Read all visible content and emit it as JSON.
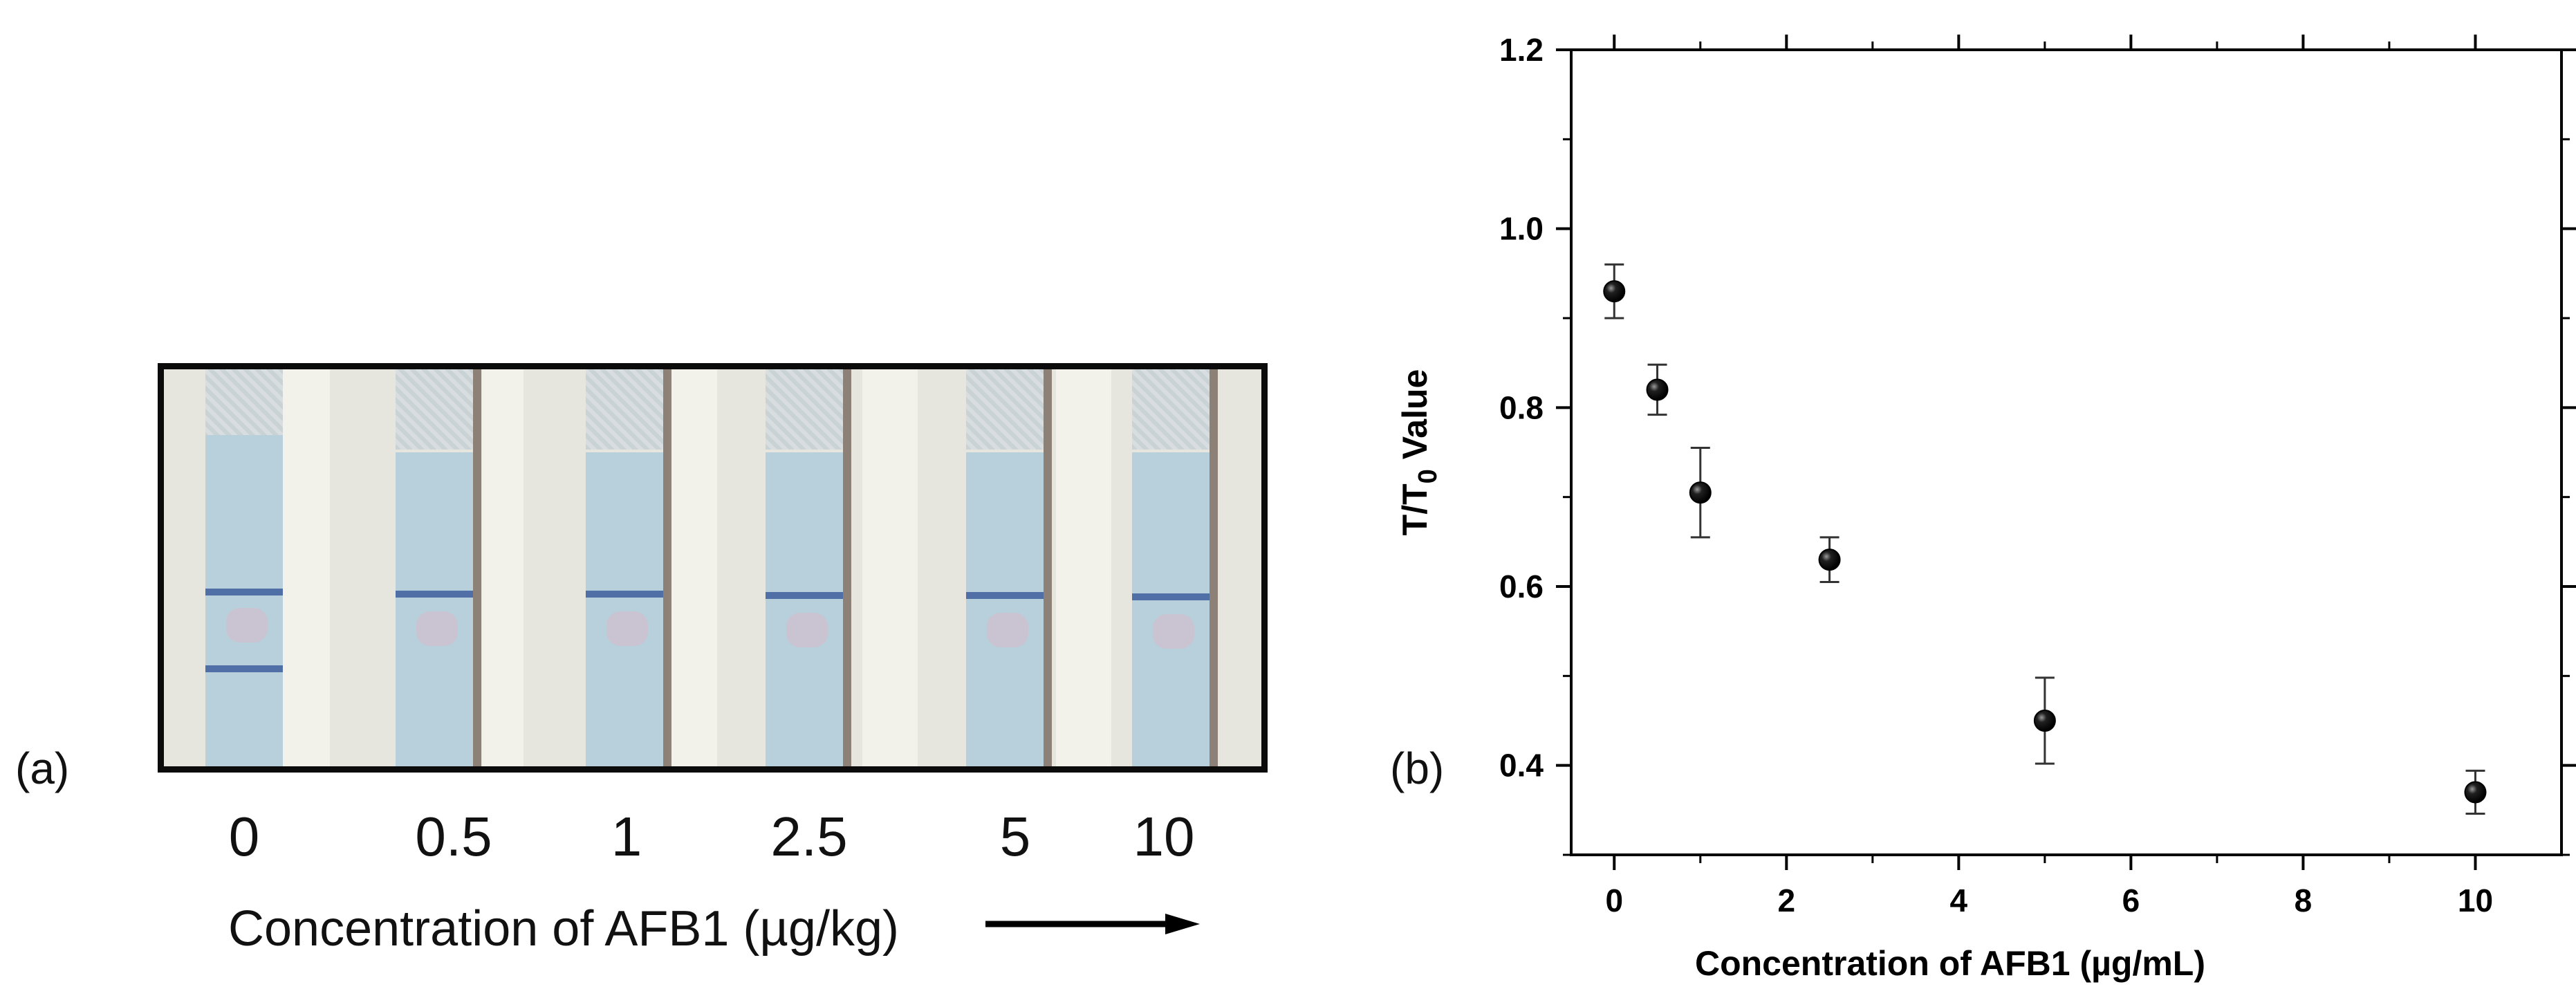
{
  "panel_a": {
    "label": "(a)",
    "concentrations": [
      "0",
      "0.5",
      "1",
      "2.5",
      "5",
      "10"
    ],
    "xlabel": "Concentration of AFB1 (µg/kg)",
    "arrow_icon": "right-arrow-icon"
  },
  "panel_b": {
    "label": "(b)"
  },
  "chart_data": {
    "type": "scatter",
    "title": "",
    "xlabel": "Concentration of AFB1 (µg/mL)",
    "ylabel": "T/T0 Value",
    "ylabel_main": "T/T",
    "ylabel_sub": "0",
    "ylabel_tail": " Value",
    "xlim": [
      -0.5,
      11
    ],
    "ylim": [
      0.3,
      1.2
    ],
    "xticks": [
      0,
      2,
      4,
      6,
      8,
      10
    ],
    "yticks": [
      0.4,
      0.6,
      0.8,
      1.0,
      1.2
    ],
    "xtick_labels": [
      "0",
      "2",
      "4",
      "6",
      "8",
      "10"
    ],
    "ytick_labels": [
      "0.4",
      "0.6",
      "0.8",
      "1.0",
      "1.2"
    ],
    "grid": false,
    "marker_color": "#000000",
    "points": [
      {
        "x": 0,
        "y": 0.93,
        "err": 0.03
      },
      {
        "x": 0.5,
        "y": 0.82,
        "err": 0.028
      },
      {
        "x": 1,
        "y": 0.705,
        "err": 0.05
      },
      {
        "x": 2.5,
        "y": 0.63,
        "err": 0.025
      },
      {
        "x": 5,
        "y": 0.45,
        "err": 0.048
      },
      {
        "x": 10,
        "y": 0.37,
        "err": 0.024
      }
    ]
  }
}
